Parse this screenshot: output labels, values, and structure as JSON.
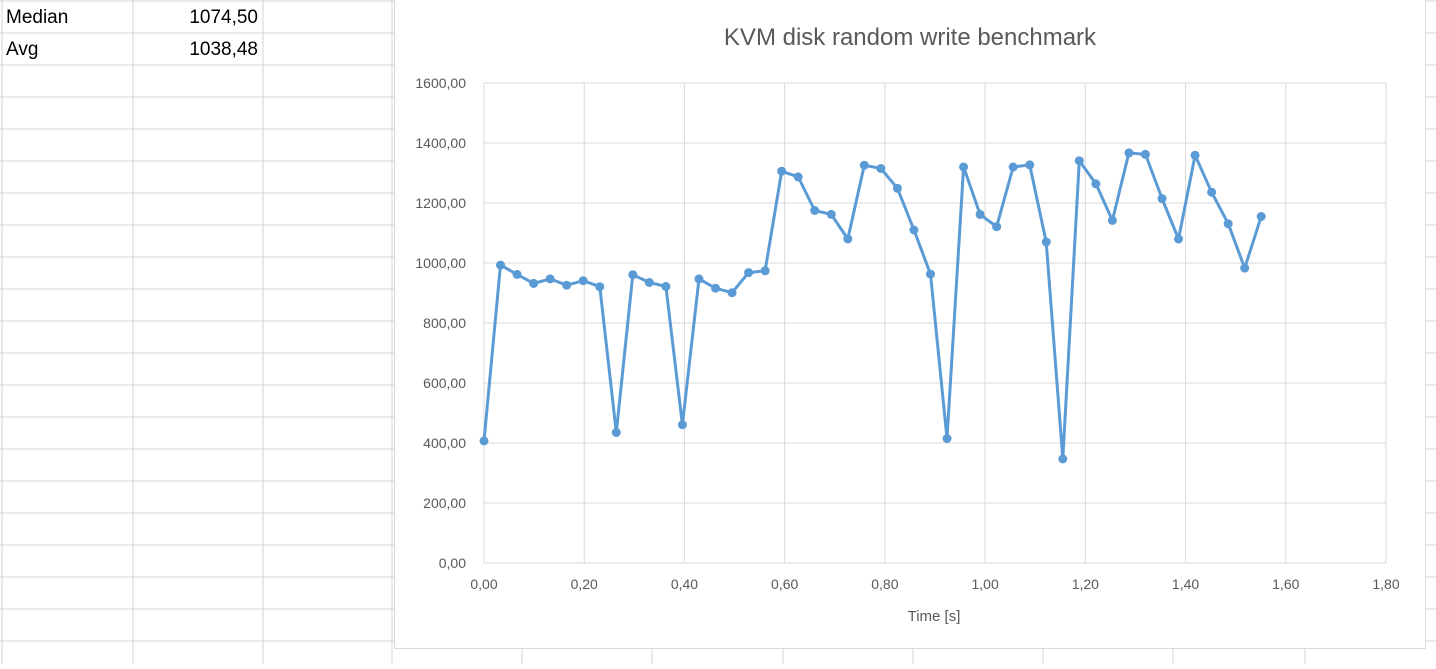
{
  "stats": [
    {
      "label": "Median",
      "value": "1074,50"
    },
    {
      "label": "Avg",
      "value": "1038,48"
    }
  ],
  "chart_data": {
    "type": "scatter",
    "title": "KVM disk random write benchmark",
    "xlabel": "Time [s]",
    "ylabel": "",
    "xlim": [
      0,
      1.8
    ],
    "ylim": [
      0,
      1600
    ],
    "x_ticks": [
      "0,00",
      "0,20",
      "0,40",
      "0,60",
      "0,80",
      "1,00",
      "1,20",
      "1,40",
      "1,60",
      "1,80"
    ],
    "y_ticks": [
      "0,00",
      "200,00",
      "400,00",
      "600,00",
      "800,00",
      "1000,00",
      "1200,00",
      "1400,00",
      "1600,00"
    ],
    "grid": true,
    "series_color": "#5b9bd5",
    "series": [
      {
        "x": [
          0.0,
          0.033,
          0.066,
          0.099,
          0.132,
          0.165,
          0.198,
          0.231,
          0.264,
          0.297,
          0.33,
          0.363,
          0.396,
          0.429,
          0.462,
          0.495,
          0.528,
          0.561,
          0.594,
          0.627,
          0.66,
          0.693,
          0.726,
          0.759,
          0.792,
          0.825,
          0.858,
          0.891,
          0.924,
          0.957,
          0.99,
          1.023,
          1.056,
          1.089,
          1.122,
          1.155,
          1.188,
          1.221,
          1.254,
          1.287,
          1.32,
          1.353,
          1.386,
          1.419,
          1.452,
          1.485,
          1.518,
          1.551
        ],
        "y": [
          407,
          993,
          962,
          932,
          947,
          926,
          941,
          921,
          435,
          961,
          935,
          922,
          461,
          947,
          916,
          901,
          968,
          974,
          1306,
          1287,
          1175,
          1162,
          1080,
          1326,
          1315,
          1249,
          1110,
          963,
          415,
          1320,
          1162,
          1121,
          1320,
          1327,
          1070,
          347,
          1341,
          1264,
          1142,
          1367,
          1362,
          1215,
          1080,
          1359,
          1236,
          1131,
          983,
          1155
        ]
      }
    ]
  }
}
